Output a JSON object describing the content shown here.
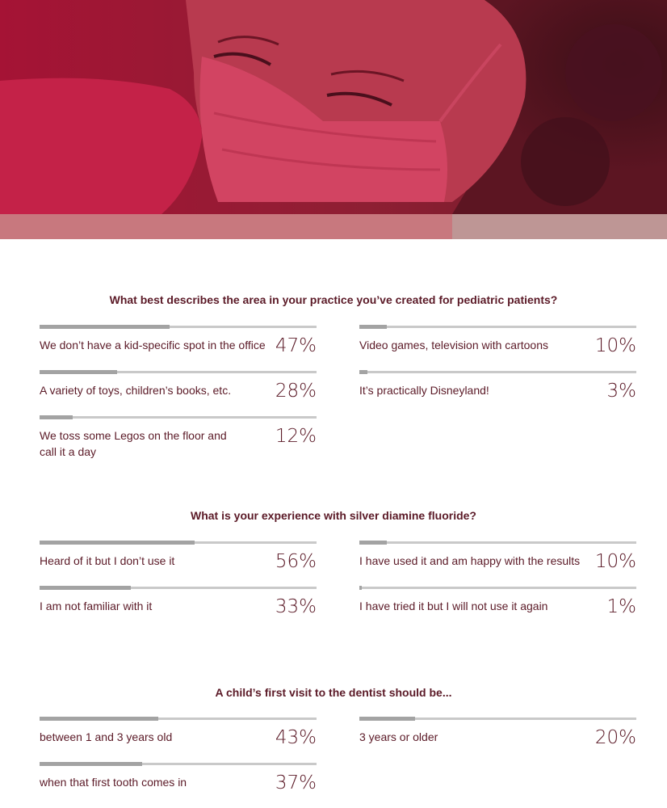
{
  "colors": {
    "hero_red": "#b5163a",
    "hero_band": "#c8787e",
    "text": "#5b1a27",
    "bar_track": "#c9c9c9",
    "bar_fill": "#a3a3a3"
  },
  "hero": {
    "image": "dentist-in-red-face-mask-photo"
  },
  "chart_data": [
    {
      "type": "bar",
      "title": "What best describes the area in your practice you’ve created for pediatric patients?",
      "categories": [
        "We don’t have a kid-specific spot in the office",
        "A variety of toys, children’s books, etc.",
        "We toss some Legos on the floor and call it a day",
        "Video games, television with cartoons",
        "It’s practically Disneyland!"
      ],
      "values": [
        47,
        28,
        12,
        10,
        3
      ],
      "labels": [
        "47%",
        "28%",
        "12%",
        "10%",
        "3%"
      ],
      "ylim": [
        0,
        100
      ]
    },
    {
      "type": "bar",
      "title": "What is your experience with silver diamine fluoride?",
      "categories": [
        "Heard of it but I don’t use it",
        "I am not familiar with it",
        "I have used it and am happy with the results",
        "I have tried it but I will not use it again"
      ],
      "values": [
        56,
        33,
        10,
        1
      ],
      "labels": [
        "56%",
        "33%",
        "10%",
        "1%"
      ],
      "ylim": [
        0,
        100
      ]
    },
    {
      "type": "bar",
      "title": "A child’s first visit to the dentist should be...",
      "categories": [
        "between 1 and 3 years old",
        "when that first tooth comes in",
        "3 years or older"
      ],
      "values": [
        43,
        37,
        20
      ],
      "labels": [
        "43%",
        "37%",
        "20%"
      ],
      "ylim": [
        0,
        100
      ]
    }
  ]
}
